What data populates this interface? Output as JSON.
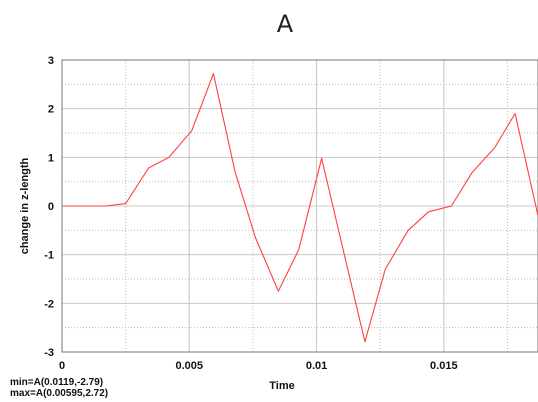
{
  "chart_data": {
    "type": "line",
    "title": "A",
    "xlabel": "Time",
    "ylabel": "change in z-length",
    "xlim": [
      0,
      0.0187
    ],
    "ylim": [
      -3,
      3
    ],
    "x_ticks": [
      0,
      0.005,
      0.01,
      0.015
    ],
    "x_tick_labels": [
      "0",
      "0.005",
      "0.01",
      "0.015"
    ],
    "y_ticks": [
      -3,
      -2,
      -1,
      0,
      1,
      2,
      3
    ],
    "y_tick_labels": [
      "-3",
      "-2",
      "-1",
      "0",
      "1",
      "2",
      "3"
    ],
    "grid": true,
    "series": [
      {
        "color": "#ff4040",
        "x": [
          0,
          0.0008,
          0.0017,
          0.0025,
          0.0034,
          0.0042,
          0.0051,
          0.00595,
          0.0068,
          0.0076,
          0.0085,
          0.0093,
          0.0102,
          0.011,
          0.0119,
          0.0127,
          0.0136,
          0.0144,
          0.0153,
          0.0161,
          0.017,
          0.0178,
          0.0187
        ],
        "y": [
          0,
          0,
          0,
          0.05,
          0.78,
          1.0,
          1.55,
          2.72,
          0.7,
          -0.65,
          -1.75,
          -0.9,
          0.98,
          -0.8,
          -2.79,
          -1.3,
          -0.5,
          -0.12,
          0.0,
          0.68,
          1.2,
          1.9,
          -0.2
        ]
      }
    ],
    "stats": {
      "min": "min=A(0.0119,-2.79)",
      "max": "max=A(0.00595,2.72)"
    }
  }
}
